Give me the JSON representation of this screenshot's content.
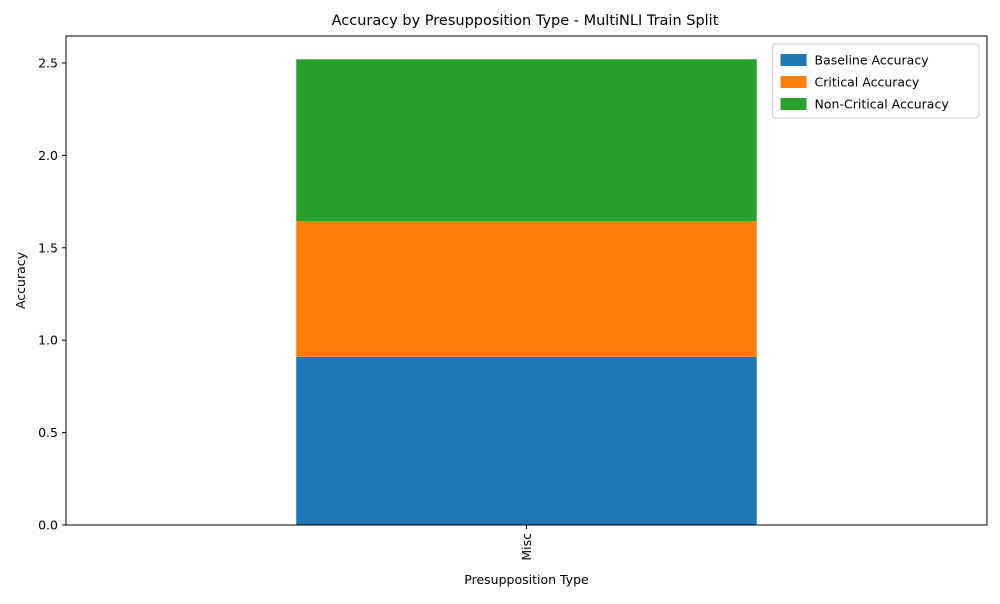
{
  "chart_data": {
    "type": "bar",
    "stacked": true,
    "title": "Accuracy by Presupposition Type - MultiNLI Train Split",
    "xlabel": "Presupposition Type",
    "ylabel": "Accuracy",
    "categories": [
      "Misc"
    ],
    "x_tick_rotation": 90,
    "ylim": [
      0,
      2.646
    ],
    "yticks": [
      0.0,
      0.5,
      1.0,
      1.5,
      2.0,
      2.5
    ],
    "ytick_labels": [
      "0.0",
      "0.5",
      "1.0",
      "1.5",
      "2.0",
      "2.5"
    ],
    "grid": false,
    "legend_position": "top-right",
    "series": [
      {
        "name": "Baseline Accuracy",
        "values": [
          0.91
        ],
        "color": "#1f77b4"
      },
      {
        "name": "Critical Accuracy",
        "values": [
          0.735
        ],
        "color": "#ff7f0e"
      },
      {
        "name": "Non-Critical Accuracy",
        "values": [
          0.875
        ],
        "color": "#2ca02c"
      }
    ]
  }
}
